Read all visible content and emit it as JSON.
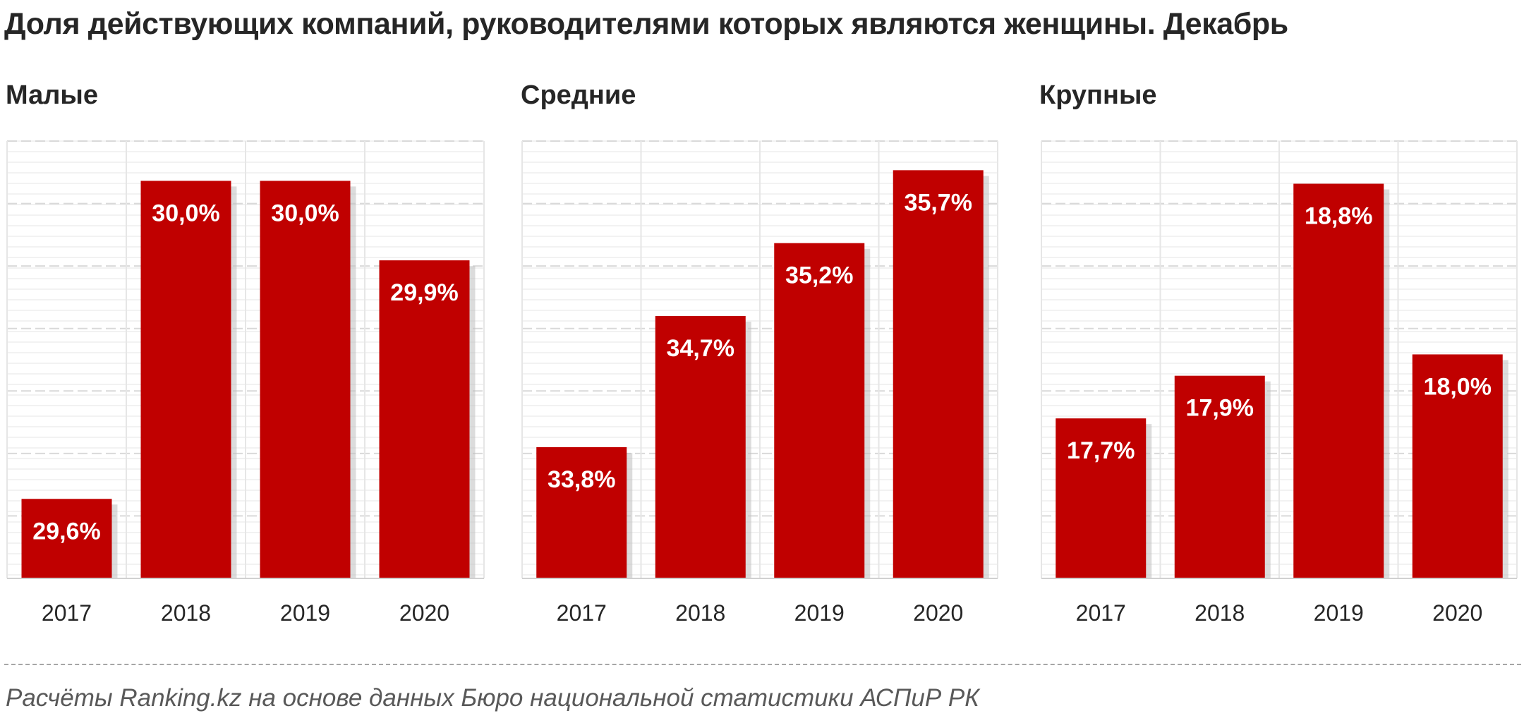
{
  "title": "Доля действующих компаний, руководителями которых являются  женщины. Декабрь",
  "source": "Расчёты Ranking.kz на основе данных  Бюро национальной  статистики АСПиР РК",
  "colors": {
    "bar": "#c00000",
    "bar_shadow": "#bfbfbf",
    "label": "#ffffff",
    "grid": "#d9d9d9",
    "text": "#262626"
  },
  "chart_data": [
    {
      "type": "bar",
      "title": "Малые",
      "categories": [
        "2017",
        "2018",
        "2019",
        "2020"
      ],
      "values": [
        29.6,
        30.0,
        30.0,
        29.9
      ],
      "labels": [
        "29,6%",
        "30,0%",
        "30,0%",
        "29,9%"
      ],
      "ylim": [
        29.5,
        30.05
      ],
      "grid": true
    },
    {
      "type": "bar",
      "title": "Средние",
      "categories": [
        "2017",
        "2018",
        "2019",
        "2020"
      ],
      "values": [
        33.8,
        34.7,
        35.2,
        35.7
      ],
      "labels": [
        "33,8%",
        "34,7%",
        "35,2%",
        "35,7%"
      ],
      "ylim": [
        32.9,
        35.9
      ],
      "grid": true
    },
    {
      "type": "bar",
      "title": "Крупные",
      "categories": [
        "2017",
        "2018",
        "2019",
        "2020"
      ],
      "values": [
        17.7,
        17.9,
        18.8,
        18.0
      ],
      "labels": [
        "17,7%",
        "17,9%",
        "18,8%",
        "18,0%"
      ],
      "ylim": [
        16.95,
        19.0
      ],
      "grid": true
    }
  ]
}
